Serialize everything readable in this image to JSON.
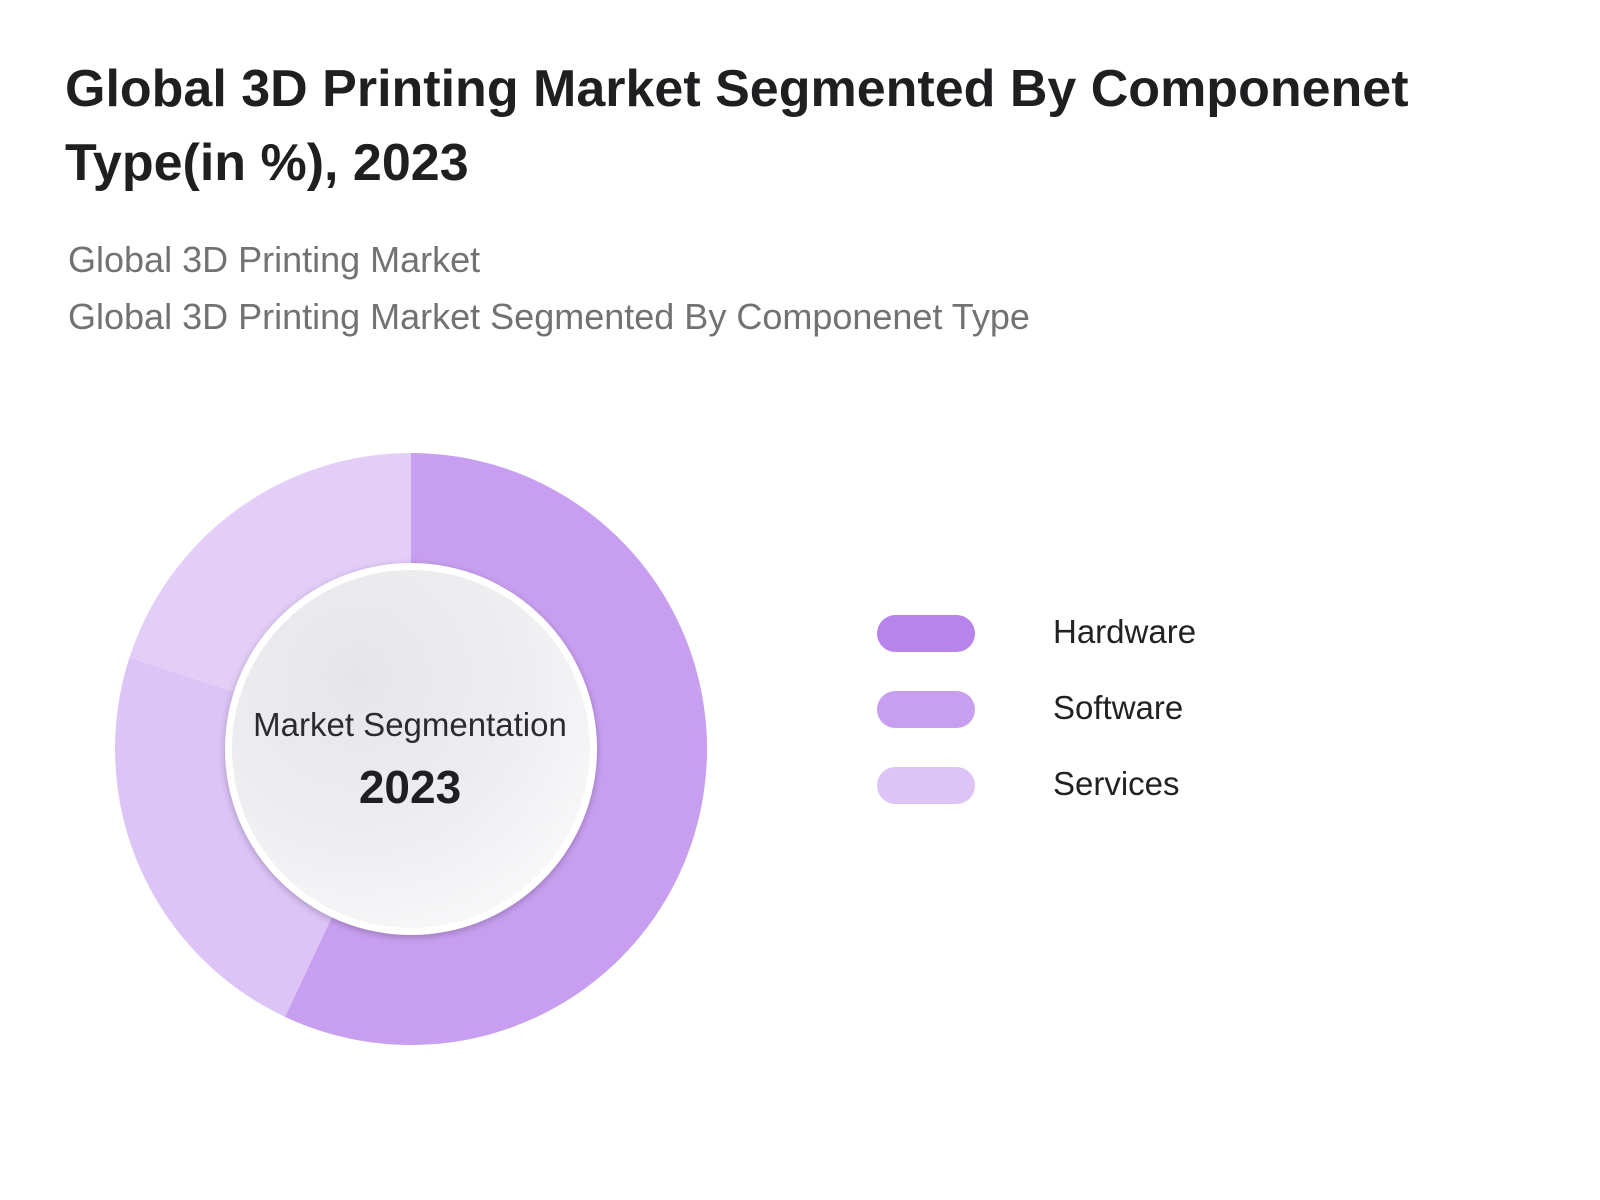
{
  "title": "Global 3D Printing Market Segmented By Componenet Type(in %), 2023",
  "subtitle_line1": "Global 3D Printing Market",
  "subtitle_line2": "Global 3D Printing Market Segmented By Componenet Type",
  "center": {
    "label": "Market Segmentation",
    "year": "2023"
  },
  "chart_data": {
    "type": "pie",
    "donut": true,
    "legend_position": "right",
    "slices": [
      {
        "label": "Hardware",
        "value": 0,
        "color": "#b784ec"
      },
      {
        "label": "Software",
        "value": 57,
        "color": "#c89ff0"
      },
      {
        "label": "Services",
        "value": 43,
        "color": "#dcc4f7"
      }
    ],
    "rendered_segments": [
      {
        "series": "Software",
        "start_pct": 0,
        "value": 57,
        "color": "#c89ff0"
      },
      {
        "series": "Services",
        "start_pct": 57,
        "value": 23,
        "color": "#dcc4f7"
      },
      {
        "series": "Services",
        "start_pct": 80,
        "value": 20,
        "color": "#e3cef8"
      }
    ]
  }
}
